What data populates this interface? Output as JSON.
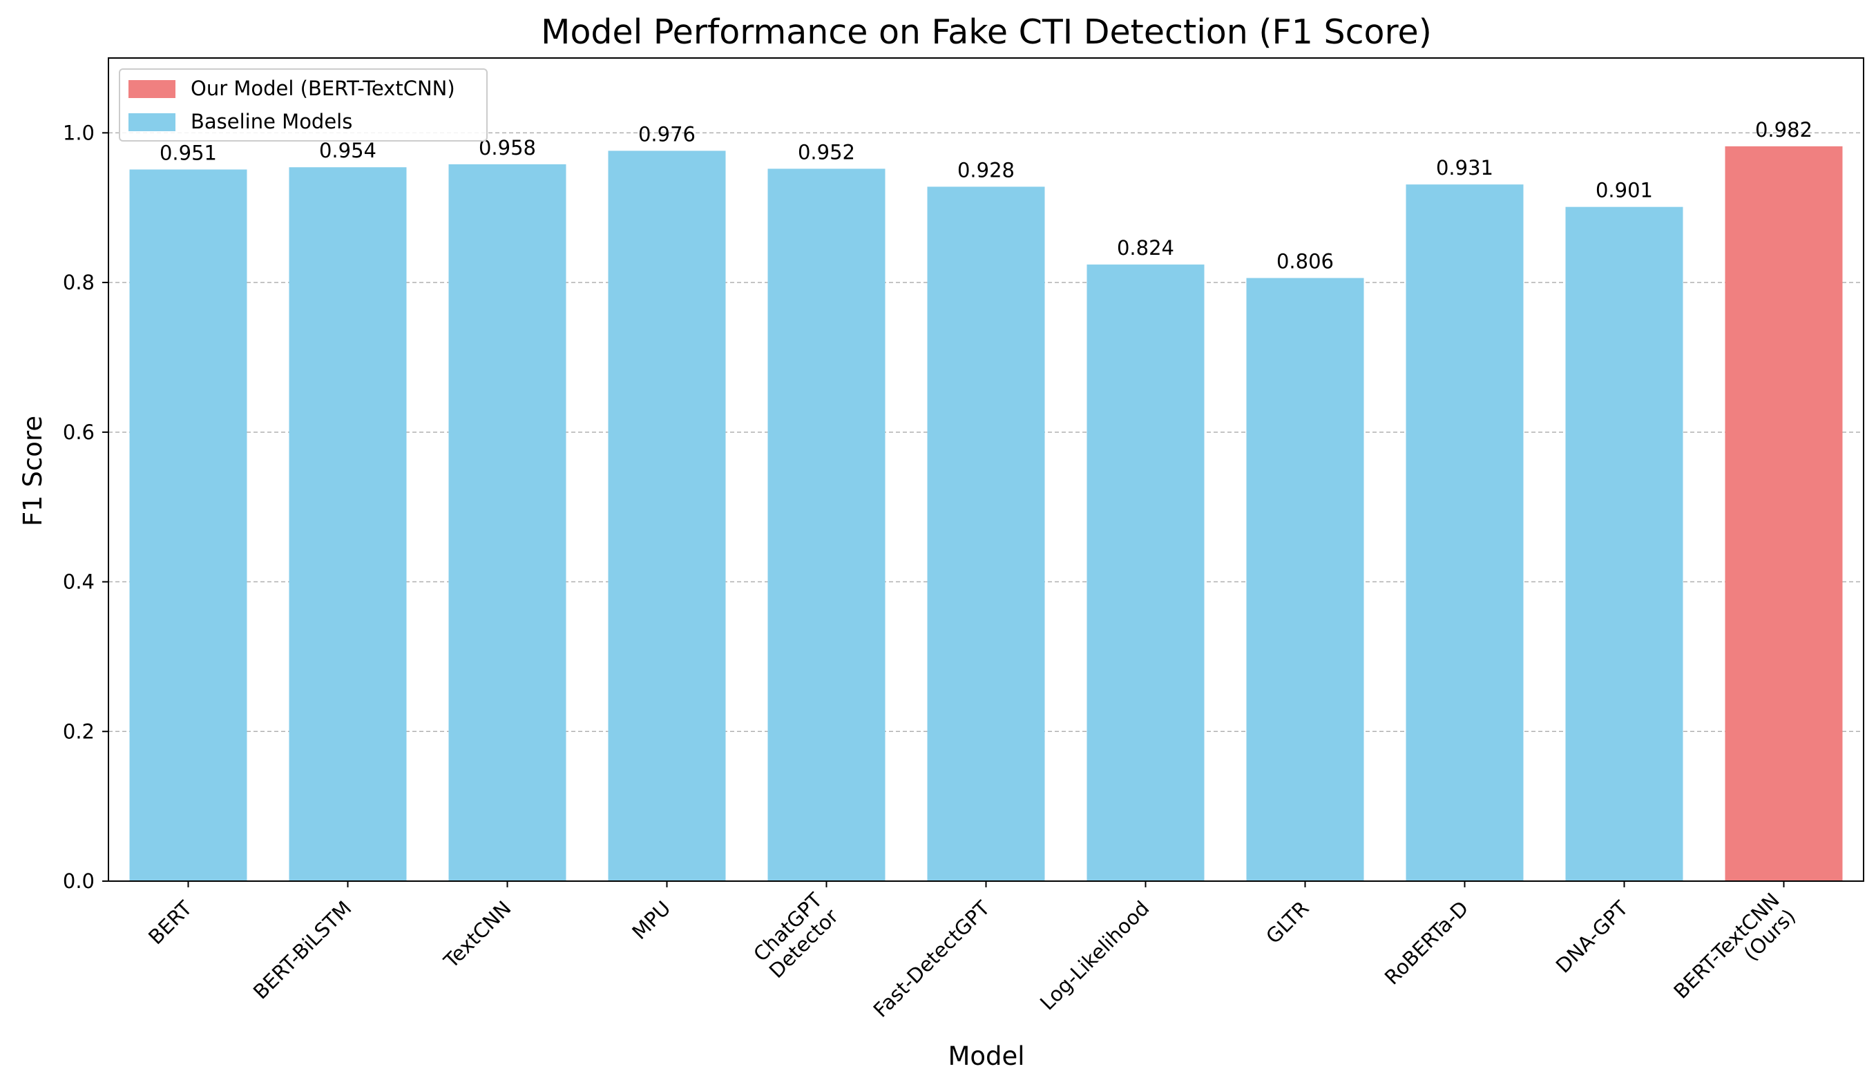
{
  "chart_data": {
    "type": "bar",
    "title": "Model Performance on Fake CTI Detection (F1 Score)",
    "xlabel": "Model",
    "ylabel": "F1 Score",
    "ylim": [
      0,
      1.1
    ],
    "yticks": [
      0.0,
      0.2,
      0.4,
      0.6,
      0.8,
      1.0
    ],
    "ytick_labels": [
      "0.0",
      "0.2",
      "0.4",
      "0.6",
      "0.8",
      "1.0"
    ],
    "grid": "y-dashed",
    "legend_position": "top-left",
    "categories": [
      "BERT",
      "BERT-BiLSTM",
      "TextCNN",
      "MPU",
      "ChatGPT\nDetector",
      "Fast-DetectGPT",
      "Log-Likelihood",
      "GLTR",
      "RoBERTa-D",
      "DNA-GPT",
      "BERT-TextCNN\n(Ours)"
    ],
    "values": [
      0.951,
      0.954,
      0.958,
      0.976,
      0.952,
      0.928,
      0.824,
      0.806,
      0.931,
      0.901,
      0.982
    ],
    "value_labels": [
      "0.951",
      "0.954",
      "0.958",
      "0.976",
      "0.952",
      "0.928",
      "0.824",
      "0.806",
      "0.931",
      "0.901",
      "0.982"
    ],
    "groups": [
      "baseline",
      "baseline",
      "baseline",
      "baseline",
      "baseline",
      "baseline",
      "baseline",
      "baseline",
      "baseline",
      "baseline",
      "ours"
    ],
    "legend": [
      {
        "key": "ours",
        "label": "Our Model (BERT-TextCNN)",
        "color": "#f08080"
      },
      {
        "key": "baseline",
        "label": "Baseline Models",
        "color": "#87ceeb"
      }
    ]
  }
}
